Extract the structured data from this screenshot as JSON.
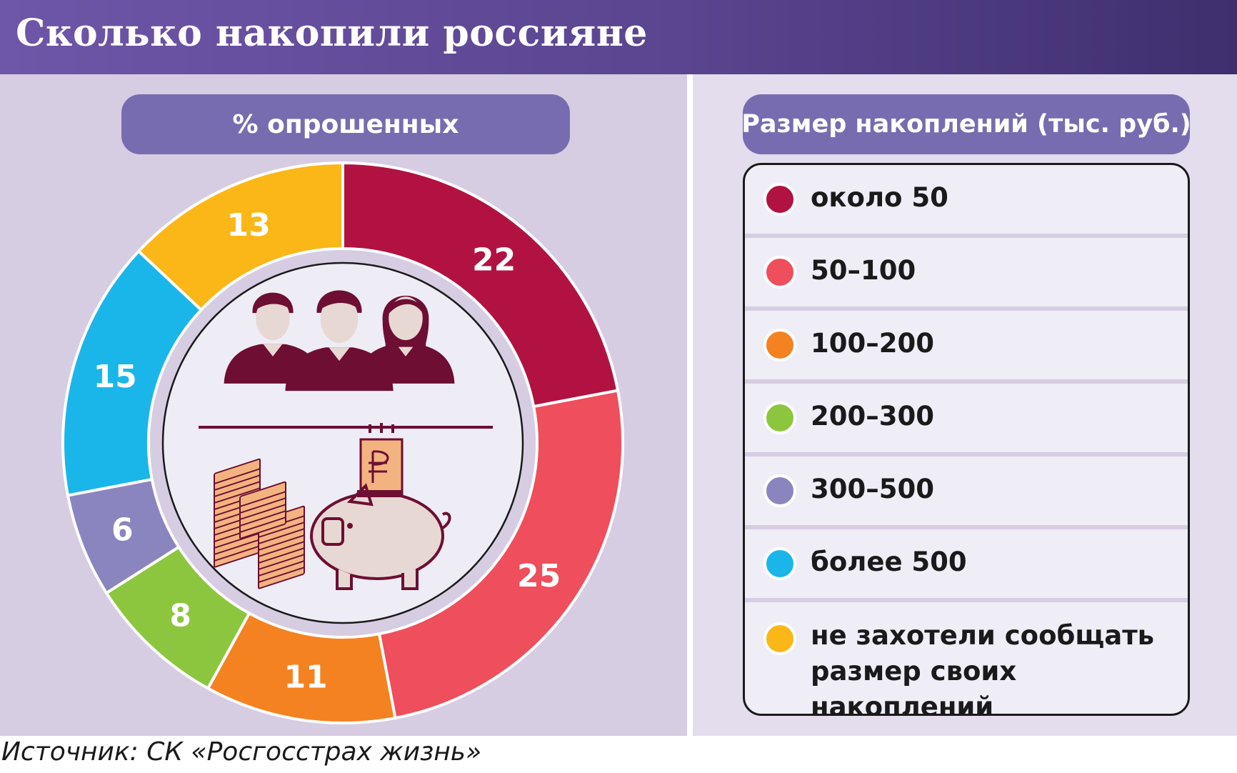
{
  "header": {
    "title": "Сколько накопили россияне"
  },
  "left_pill": {
    "label": "% опрошенных"
  },
  "right_pill": {
    "label": "Размер накоплений (тыс. руб.)"
  },
  "source": "Источник: СК «Росгосстрах жизнь»",
  "colors": {
    "header": "#5a4590",
    "panel": "#d6cde3",
    "pill": "#786cb0",
    "icon_dark": "#6d0e32",
    "icon_skin": "#e7d8d4",
    "money": "#f2b380"
  },
  "chart_data": {
    "type": "pie",
    "title": "% опрошенных",
    "donut": true,
    "legend_title": "Размер накоплений (тыс. руб.)",
    "categories": [
      "около 50",
      "50–100",
      "100–200",
      "200–300",
      "300–500",
      "более 500",
      "не захотели сообщать размер своих накоплений"
    ],
    "legend_lines": [
      [
        "около 50"
      ],
      [
        "50–100"
      ],
      [
        "100–200"
      ],
      [
        "200–300"
      ],
      [
        "300–500"
      ],
      [
        "более 500"
      ],
      [
        "не захотели сообщать",
        "размер своих накоплений"
      ]
    ],
    "values": [
      22,
      25,
      11,
      8,
      6,
      15,
      13
    ],
    "colors": [
      "#b21242",
      "#ef4e5c",
      "#f58221",
      "#8cc63f",
      "#8b85bf",
      "#1ab6ea",
      "#fbb718"
    ],
    "legend_position": "right",
    "center_icons": [
      "people-icon",
      "money-stacks-icon",
      "piggy-bank-icon"
    ]
  }
}
